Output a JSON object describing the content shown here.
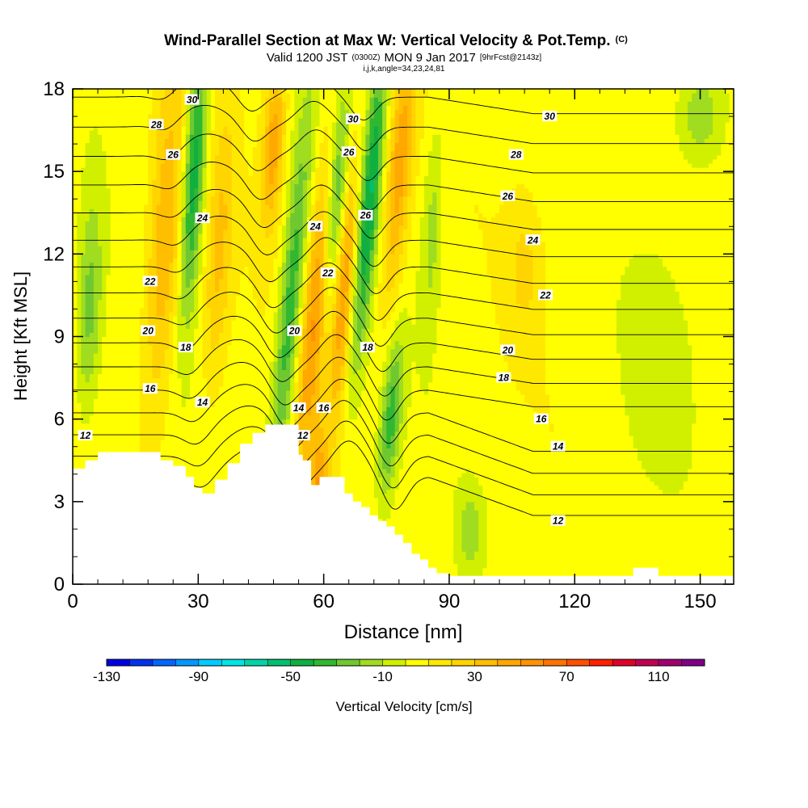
{
  "chart_data": {
    "type": "heatmap",
    "title": "Wind-Parallel Section at Max W: Vertical Velocity & Pot.Temp.",
    "title_mark": "(C)",
    "subtitle": {
      "valid_prefix": "Valid 1200 JST",
      "utc": "(0300Z)",
      "date": "MON 9 Jan 2017",
      "forecast": "[9hrFcst@2143z]"
    },
    "subtitle2": "i,j,k,angle=34,23,24,81",
    "xlabel": "Distance [nm]",
    "ylabel": "Height [Kft MSL]",
    "xlim": [
      0,
      158
    ],
    "ylim": [
      0,
      18
    ],
    "x_ticks": [
      0,
      30,
      60,
      90,
      120,
      150
    ],
    "y_ticks": [
      0,
      3,
      6,
      9,
      12,
      15,
      18
    ],
    "x_minor_step": 6,
    "y_minor_step": 1,
    "colorbar": {
      "label": "Vertical Velocity [cm/s]",
      "tick_labels": [
        "-130",
        "-90",
        "-50",
        "-10",
        "30",
        "70",
        "110"
      ],
      "tick_values": [
        -130,
        -90,
        -50,
        -10,
        30,
        70,
        110
      ],
      "levels": [
        -130,
        -120,
        -110,
        -100,
        -90,
        -80,
        -70,
        -60,
        -50,
        -40,
        -30,
        -20,
        -10,
        0,
        10,
        20,
        30,
        40,
        50,
        60,
        70,
        80,
        90,
        100,
        110,
        120
      ],
      "colors": [
        "#0000e0",
        "#0033ee",
        "#0066ff",
        "#0099ff",
        "#00ccff",
        "#00e5e5",
        "#00d4a8",
        "#00c070",
        "#10b040",
        "#30b830",
        "#70c830",
        "#a0dc20",
        "#d0f000",
        "#ffff00",
        "#ffe800",
        "#ffd400",
        "#ffbe00",
        "#ffa800",
        "#ff9200",
        "#ff7400",
        "#ff5000",
        "#ff2000",
        "#e0002a",
        "#c00050",
        "#a00070",
        "#800088"
      ]
    },
    "terrain": [
      [
        0,
        4.2
      ],
      [
        3,
        4.5
      ],
      [
        6,
        4.8
      ],
      [
        20,
        4.8
      ],
      [
        21,
        4.5
      ],
      [
        24,
        4.3
      ],
      [
        27,
        3.9
      ],
      [
        29,
        3.5
      ],
      [
        31,
        3.3
      ],
      [
        34,
        3.8
      ],
      [
        37,
        4.4
      ],
      [
        40,
        5.1
      ],
      [
        43,
        5.5
      ],
      [
        46,
        5.8
      ],
      [
        52,
        5.8
      ],
      [
        54,
        4.7
      ],
      [
        55,
        4.5
      ],
      [
        57,
        3.6
      ],
      [
        59,
        3.9
      ],
      [
        64,
        3.9
      ],
      [
        65,
        3.3
      ],
      [
        67,
        3
      ],
      [
        69,
        2.8
      ],
      [
        71,
        2.5
      ],
      [
        73,
        2.3
      ],
      [
        75,
        2.1
      ],
      [
        77,
        1.8
      ],
      [
        79,
        1.5
      ],
      [
        81,
        1.1
      ],
      [
        83,
        0.9
      ],
      [
        85,
        0.6
      ],
      [
        87,
        0.4
      ],
      [
        90,
        0.3
      ],
      [
        132,
        0.3
      ],
      [
        134,
        0.6
      ],
      [
        139,
        0.6
      ],
      [
        140,
        0.3
      ],
      [
        158,
        0.3
      ]
    ],
    "velocity_features": [
      {
        "x": 22,
        "z": 12.5,
        "sx": 4,
        "sz": 6,
        "w": 35,
        "tilt": 0.35
      },
      {
        "x": 29,
        "z": 15,
        "sx": 2.5,
        "sz": 5,
        "w": -55,
        "tilt": 0.35
      },
      {
        "x": 35,
        "z": 12,
        "sx": 3,
        "sz": 5,
        "w": 25,
        "tilt": 0.35
      },
      {
        "x": 48,
        "z": 16,
        "sx": 2.5,
        "sz": 3,
        "w": 40,
        "tilt": 0.35
      },
      {
        "x": 52,
        "z": 10,
        "sx": 2.8,
        "sz": 7,
        "w": -45,
        "tilt": 0.55
      },
      {
        "x": 58,
        "z": 10,
        "sx": 3,
        "sz": 6,
        "w": 45,
        "tilt": 0.55
      },
      {
        "x": 63,
        "z": 14,
        "sx": 2.5,
        "sz": 4,
        "w": -40,
        "tilt": 0.5
      },
      {
        "x": 65,
        "z": 11,
        "sx": 2.5,
        "sz": 5,
        "w": 45,
        "tilt": 0.5
      },
      {
        "x": 71,
        "z": 14,
        "sx": 2.5,
        "sz": 6,
        "w": -55,
        "tilt": 0.55
      },
      {
        "x": 76,
        "z": 6,
        "sx": 2.5,
        "sz": 3,
        "w": -40,
        "tilt": 0.5
      },
      {
        "x": 78,
        "z": 15,
        "sx": 3,
        "sz": 5,
        "w": 40,
        "tilt": 0.5
      },
      {
        "x": 59,
        "z": 3.5,
        "sx": 2,
        "sz": 2,
        "w": 40,
        "tilt": 0
      },
      {
        "x": 4,
        "z": 10,
        "sx": 3,
        "sz": 4,
        "w": -30,
        "tilt": 0.2
      },
      {
        "x": 86,
        "z": 13,
        "sx": 2.5,
        "sz": 4,
        "w": -20,
        "tilt": 0.3
      },
      {
        "x": 108,
        "z": 11.5,
        "sx": 4,
        "sz": 2.5,
        "w": 15,
        "tilt": 0
      },
      {
        "x": 150,
        "z": 17,
        "sx": 6,
        "sz": 2,
        "w": -25,
        "tilt": 0
      },
      {
        "x": 95,
        "z": 2,
        "sx": 3,
        "sz": 1.5,
        "w": -20,
        "tilt": 0
      },
      {
        "x": 140,
        "z": 8,
        "sx": 8,
        "sz": 4,
        "w": -12,
        "tilt": 0
      }
    ],
    "isentrope_levels": [
      11,
      12,
      13,
      14,
      15,
      16,
      17,
      18,
      19,
      20,
      21,
      22,
      23,
      24,
      25,
      26,
      27,
      28,
      29,
      30,
      31
    ],
    "isentrope_labels": [
      {
        "text": "12",
        "x": 3,
        "z": 5.4
      },
      {
        "text": "14",
        "x": 31,
        "z": 6.6
      },
      {
        "text": "16",
        "x": 18.5,
        "z": 7.1
      },
      {
        "text": "18",
        "x": 27,
        "z": 8.6
      },
      {
        "text": "20",
        "x": 18,
        "z": 9.2
      },
      {
        "text": "22",
        "x": 18.5,
        "z": 11.0
      },
      {
        "text": "24",
        "x": 31,
        "z": 13.3
      },
      {
        "text": "26",
        "x": 24,
        "z": 15.6
      },
      {
        "text": "28",
        "x": 20,
        "z": 16.7
      },
      {
        "text": "30",
        "x": 28.5,
        "z": 17.6
      },
      {
        "text": "20",
        "x": 53,
        "z": 9.2
      },
      {
        "text": "14",
        "x": 54,
        "z": 6.4
      },
      {
        "text": "12",
        "x": 55,
        "z": 5.4
      },
      {
        "text": "16",
        "x": 60,
        "z": 6.4
      },
      {
        "text": "24",
        "x": 58,
        "z": 13.0
      },
      {
        "text": "22",
        "x": 61,
        "z": 11.3
      },
      {
        "text": "26",
        "x": 66,
        "z": 15.7
      },
      {
        "text": "30",
        "x": 67,
        "z": 16.9
      },
      {
        "text": "26",
        "x": 70,
        "z": 13.4
      },
      {
        "text": "18",
        "x": 70.5,
        "z": 8.6
      },
      {
        "text": "30",
        "x": 114,
        "z": 17.0
      },
      {
        "text": "28",
        "x": 106,
        "z": 15.6
      },
      {
        "text": "26",
        "x": 104,
        "z": 14.1
      },
      {
        "text": "24",
        "x": 110,
        "z": 12.5
      },
      {
        "text": "22",
        "x": 113,
        "z": 10.5
      },
      {
        "text": "20",
        "x": 104,
        "z": 8.5
      },
      {
        "text": "18",
        "x": 103,
        "z": 7.5
      },
      {
        "text": "16",
        "x": 112,
        "z": 6.0
      },
      {
        "text": "14",
        "x": 116,
        "z": 5.0
      },
      {
        "text": "12",
        "x": 116,
        "z": 2.3
      }
    ]
  }
}
